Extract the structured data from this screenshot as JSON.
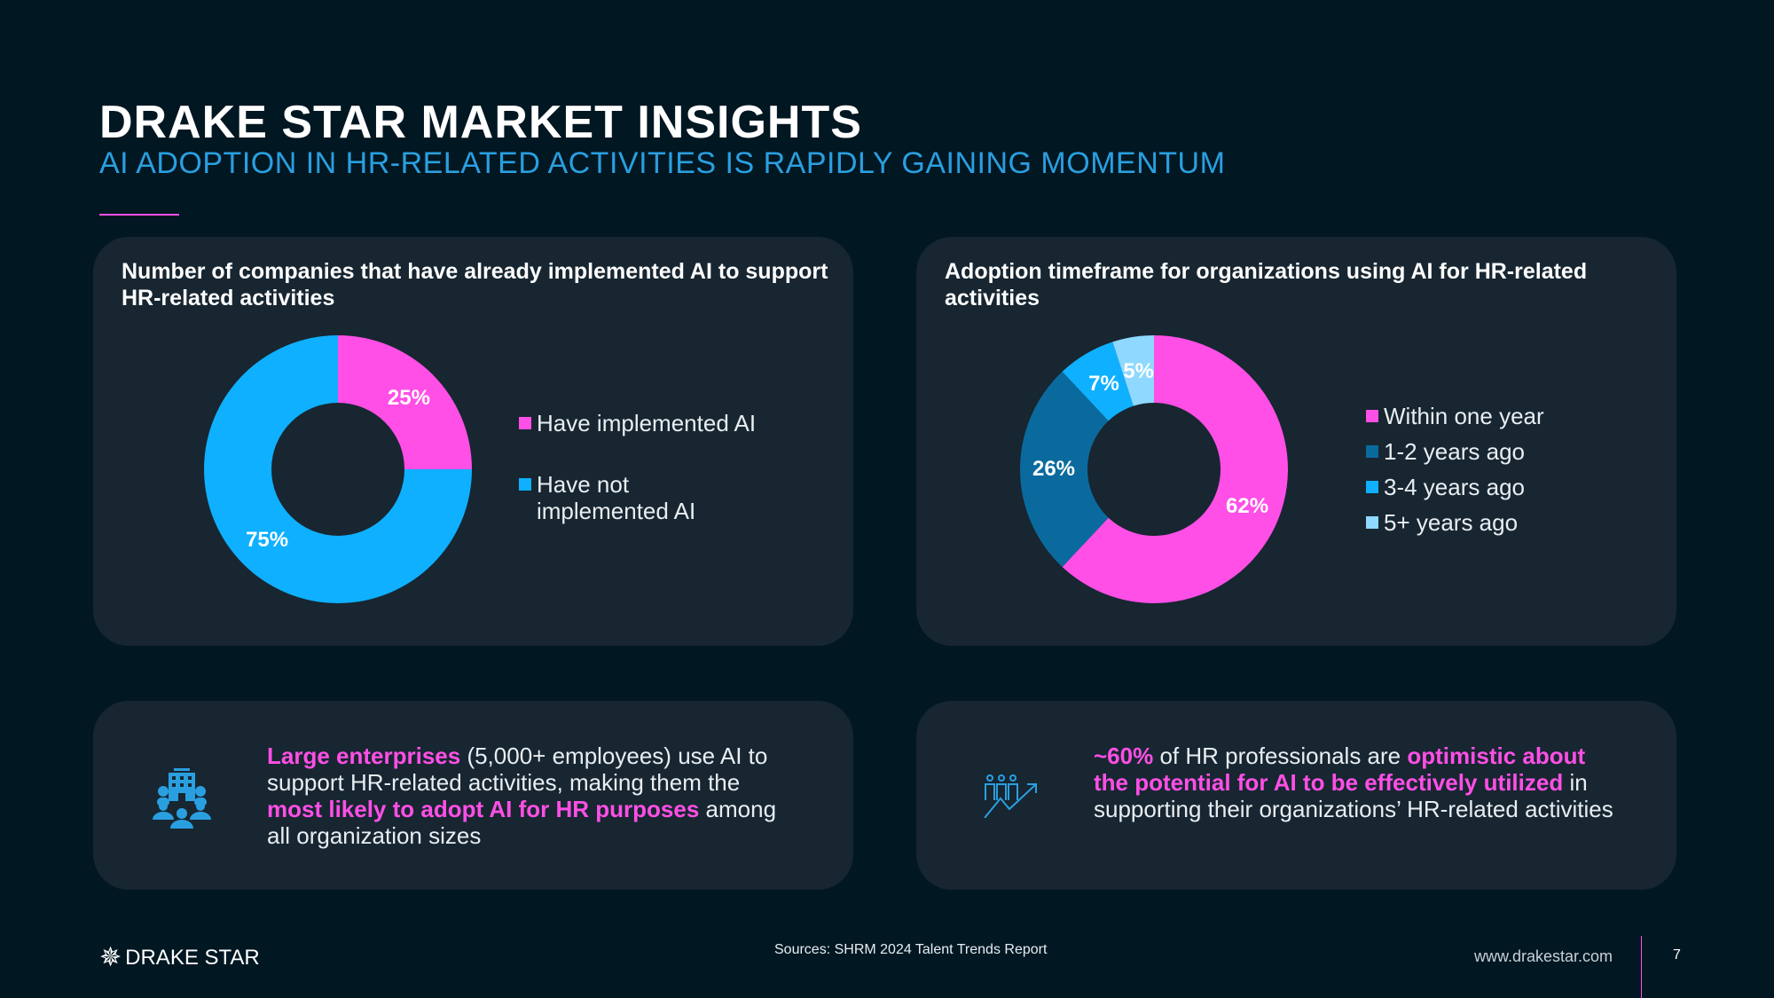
{
  "header": {
    "title": "DRAKE STAR MARKET INSIGHTS",
    "subtitle": "AI ADOPTION IN HR-RELATED ACTIVITIES IS RAPIDLY GAINING MOMENTUM"
  },
  "colors": {
    "background": "#011722",
    "card": "#172631",
    "pink": "#ff4fe6",
    "blue": "#0fb0ff",
    "dark_blue": "#0a6a9e",
    "light_blue": "#8fd8ff"
  },
  "chart_data": [
    {
      "type": "pie",
      "donut": true,
      "title": "Number of companies that have already implemented AI to support HR-related activities",
      "categories": [
        "Have implemented AI",
        "Have not implemented AI"
      ],
      "values": [
        25,
        75
      ],
      "labels": [
        "25%",
        "75%"
      ],
      "colors": [
        "#ff4fe6",
        "#0fb0ff"
      ],
      "legend": "right"
    },
    {
      "type": "pie",
      "donut": true,
      "title": "Adoption timeframe for organizations using AI for HR-related activities",
      "categories": [
        "Within one year",
        "1-2 years ago",
        "3-4 years ago",
        "5+ years ago"
      ],
      "values": [
        62,
        26,
        7,
        5
      ],
      "labels": [
        "62%",
        "26%",
        "7%",
        "5%"
      ],
      "colors": [
        "#ff4fe6",
        "#0a6a9e",
        "#0fb0ff",
        "#8fd8ff"
      ],
      "legend": "right"
    }
  ],
  "notes": [
    {
      "icon": "enterprise-people-icon",
      "parts": [
        {
          "t": "Large enterprises",
          "h": true
        },
        {
          "t": " (5,000+ employees) use AI to support HR-related activities, making them the ",
          "h": false
        },
        {
          "t": "most likely to adopt AI for HR purposes",
          "h": true
        },
        {
          "t": " among all organization sizes",
          "h": false
        }
      ]
    },
    {
      "icon": "people-growth-icon",
      "parts": [
        {
          "t": "~60%",
          "h": true
        },
        {
          "t": " of HR professionals are ",
          "h": false
        },
        {
          "t": "optimistic about the potential for AI to be effectively utilized",
          "h": true
        },
        {
          "t": " in supporting their organizations’ HR-related activities",
          "h": false
        }
      ]
    }
  ],
  "footer": {
    "logo": "DRAKE STAR",
    "source": "Sources: SHRM 2024 Talent Trends Report",
    "url": "www.drakestar.com",
    "page": "7"
  }
}
